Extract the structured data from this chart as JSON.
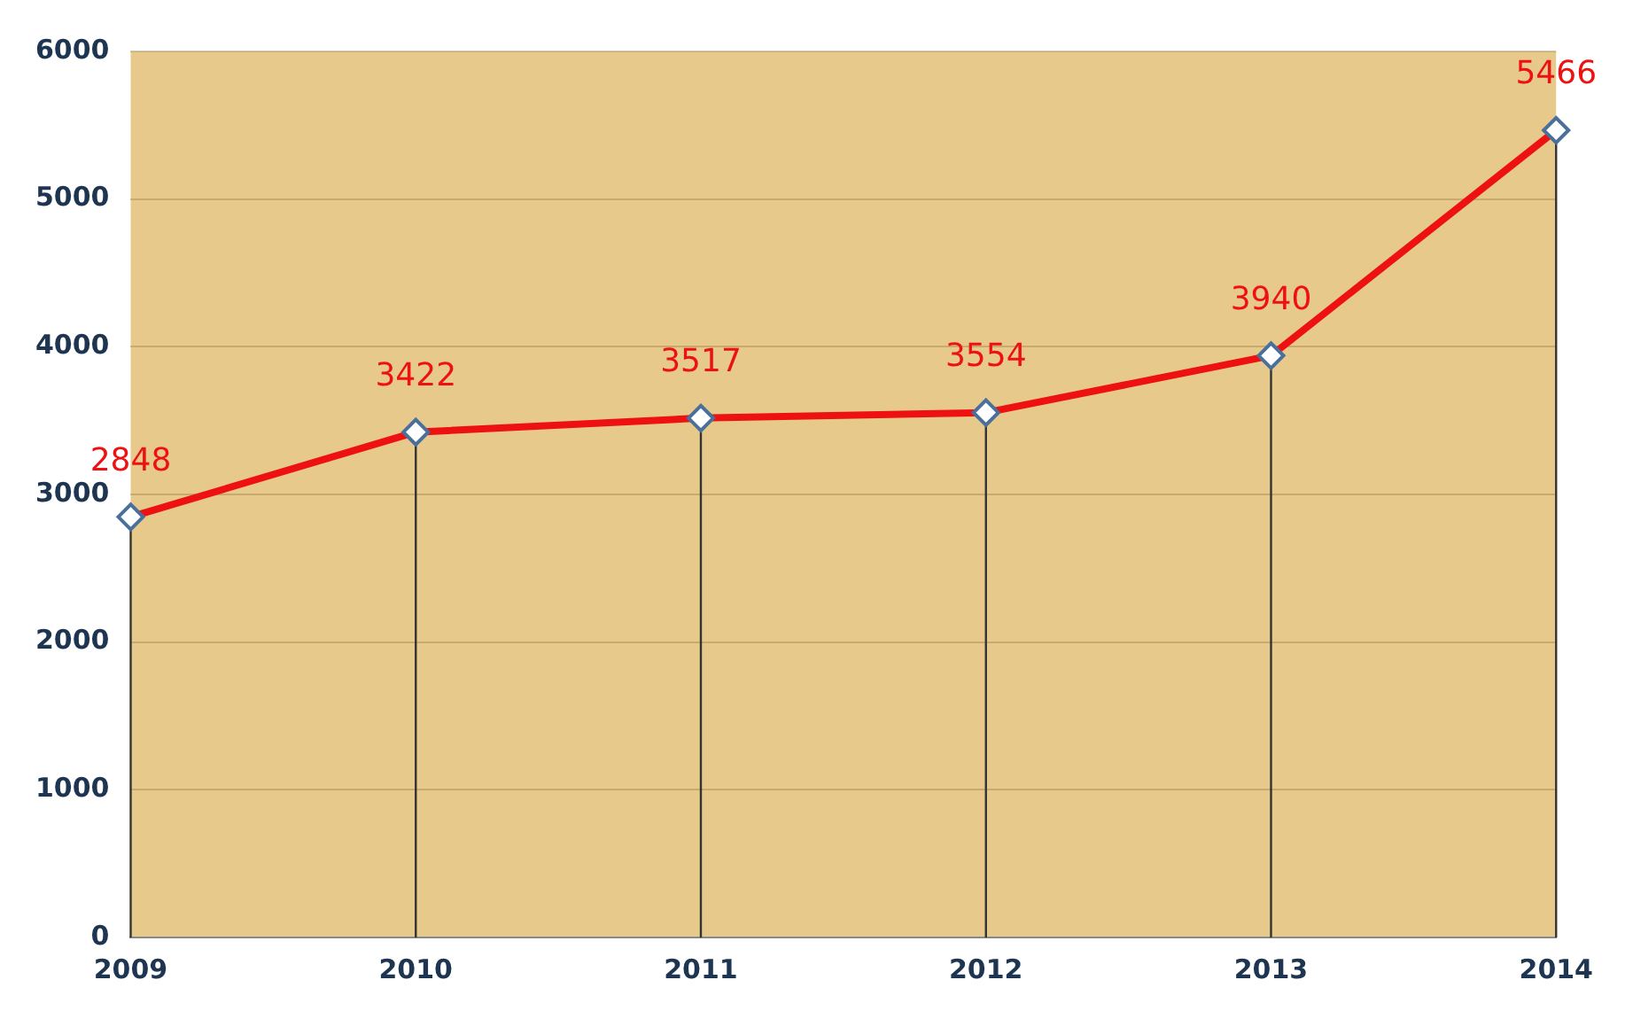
{
  "chart_data": {
    "type": "line",
    "categories": [
      "2009",
      "2010",
      "2011",
      "2012",
      "2013",
      "2014"
    ],
    "series": [
      {
        "color": "#ee1111",
        "values": [
          2848,
          3422,
          3517,
          3554,
          3940,
          5466
        ]
      }
    ],
    "ylim": [
      0,
      6000
    ],
    "yticks": [
      0,
      1000,
      2000,
      3000,
      4000,
      5000,
      6000
    ],
    "grid": "y",
    "legend": false,
    "marker": "diamond",
    "line_style": "solid",
    "data_labels": true
  }
}
